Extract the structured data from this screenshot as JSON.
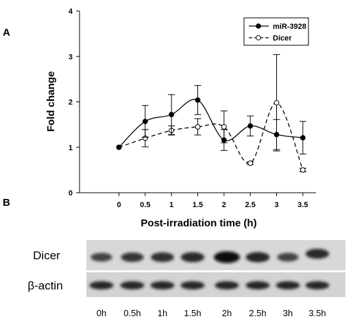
{
  "panel_labels": [
    "A",
    "B"
  ],
  "chart_data": {
    "type": "line",
    "title": "",
    "xlabel": "Post-irradiation time (h)",
    "ylabel": "Fold change",
    "x": [
      0,
      0.5,
      1,
      1.5,
      2,
      2.5,
      3,
      3.5
    ],
    "x_tick_labels": [
      "0",
      "0.5",
      "1",
      "1.5",
      "2",
      "2.5",
      "3",
      "3.5"
    ],
    "xlim": [
      -0.75,
      3.75
    ],
    "ylim": [
      0,
      4
    ],
    "y_ticks": [
      0,
      1,
      2,
      3,
      4
    ],
    "grid": false,
    "legend_position": "top-right",
    "series": [
      {
        "name": "miR-3928",
        "marker": "filled-circle",
        "line_style": "solid",
        "color": "#000000",
        "values": [
          1.0,
          1.57,
          1.72,
          2.04,
          1.16,
          1.47,
          1.28,
          1.21
        ],
        "error": [
          0,
          0.35,
          0.44,
          0.32,
          0.23,
          0.22,
          0.33,
          0.36
        ]
      },
      {
        "name": "Dicer",
        "marker": "open-circle",
        "line_style": "dashed",
        "color": "#000000",
        "values": [
          1.0,
          1.2,
          1.37,
          1.45,
          1.45,
          0.65,
          1.98,
          0.5
        ],
        "error": [
          0,
          0.19,
          0.1,
          0.18,
          0.35,
          0.03,
          1.06,
          0.04
        ]
      }
    ]
  },
  "blot": {
    "rows": [
      {
        "label": "Dicer",
        "band_intensity": [
          0.45,
          0.6,
          0.65,
          0.7,
          1.0,
          0.75,
          0.45,
          0.7
        ]
      },
      {
        "label": "β-actin",
        "band_intensity": [
          0.75,
          0.75,
          0.75,
          0.75,
          0.75,
          0.75,
          0.75,
          0.75
        ]
      }
    ],
    "lanes": [
      "0h",
      "0.5h",
      "1h",
      "1.5h",
      "2h",
      "2.5h",
      "3h",
      "3.5h"
    ]
  }
}
